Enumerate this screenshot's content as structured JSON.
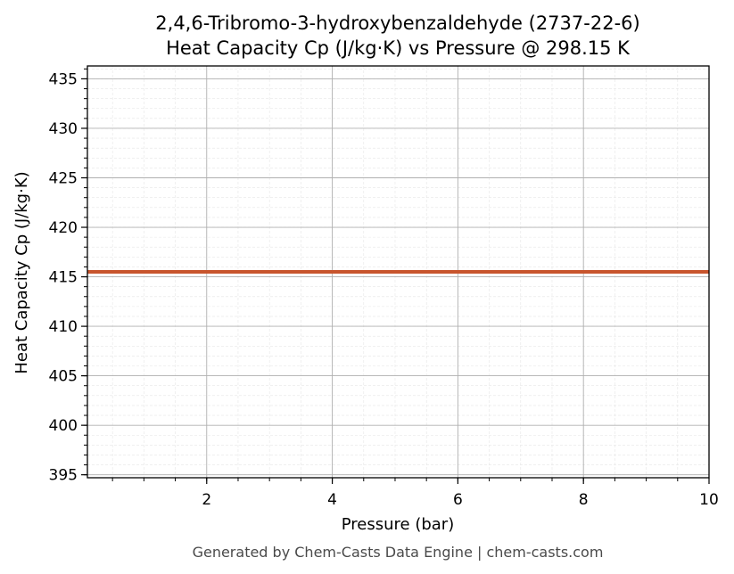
{
  "chart_data": {
    "type": "line",
    "title": "2,4,6-Tribromo-3-hydroxybenzaldehyde (2737-22-6)",
    "subtitle": "Heat Capacity Cp (J/kg·K) vs Pressure @ 298.15 K",
    "xlabel": "Pressure (bar)",
    "ylabel": "Heat Capacity Cp (J/kg·K)",
    "xlim": [
      0.1,
      10
    ],
    "ylim": [
      394.7,
      436.3
    ],
    "x_ticks": [
      2,
      4,
      6,
      8,
      10
    ],
    "y_ticks": [
      395,
      400,
      405,
      410,
      415,
      420,
      425,
      430,
      435
    ],
    "grid": true,
    "minor_grid": true,
    "series": [
      {
        "color": "#c8552d",
        "x": [
          0.1,
          1,
          2,
          3,
          4,
          5,
          6,
          7,
          8,
          9,
          10
        ],
        "y": [
          415.5,
          415.5,
          415.5,
          415.5,
          415.5,
          415.5,
          415.5,
          415.5,
          415.5,
          415.5,
          415.5
        ]
      }
    ]
  },
  "footer": "Generated by Chem-Casts Data Engine | chem-casts.com"
}
